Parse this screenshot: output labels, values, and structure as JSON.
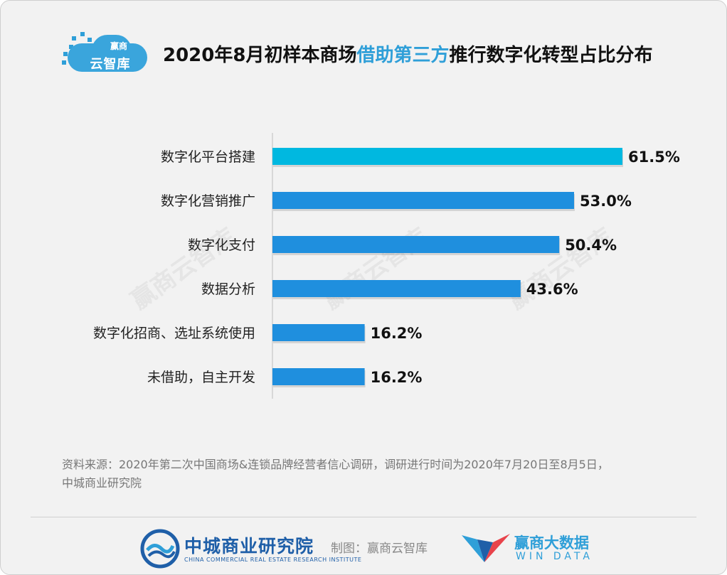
{
  "logo": {
    "top_text": "赢商",
    "main_text": "云智库"
  },
  "title": {
    "part1": "2020年8月初样本商场",
    "highlight": "借助第三方",
    "part2": "推行数字化转型占比分布"
  },
  "colors": {
    "primary": "#1f8fde",
    "highlight": "#00b8e0",
    "accent": "#2f9fd8",
    "text": "#222222"
  },
  "chart_data": {
    "type": "bar",
    "orientation": "horizontal",
    "title": "2020年8月初样本商场借助第三方推行数字化转型占比分布",
    "categories": [
      "数字化平台搭建",
      "数字化营销推广",
      "数字化支付",
      "数据分析",
      "数字化招商、选址系统使用",
      "未借助，自主开发"
    ],
    "values": [
      61.5,
      53.0,
      50.4,
      43.6,
      16.2,
      16.2
    ],
    "labels": [
      "61.5%",
      "53.0%",
      "50.4%",
      "43.6%",
      "16.2%",
      "16.2%"
    ],
    "unit": "%",
    "xlim": [
      0,
      65
    ],
    "highlight_index": 0,
    "xlabel": "",
    "ylabel": "",
    "grid": false
  },
  "source": {
    "line1": "资料来源：2020年第二次中国商场&连锁品牌经营者信心调研，调研进行时间为2020年7月20日至8月5日，",
    "line2": "中城商业研究院"
  },
  "footer": {
    "org_name": "中城商业研究院",
    "org_sub": "CHINA COMMERCIAL REAL ESTATE RESEARCH INSTITUTE",
    "made_by": "制图：赢商云智库",
    "brand_name": "赢商大数据",
    "brand_sub": "WIN DATA"
  },
  "watermark": "赢商云智库"
}
